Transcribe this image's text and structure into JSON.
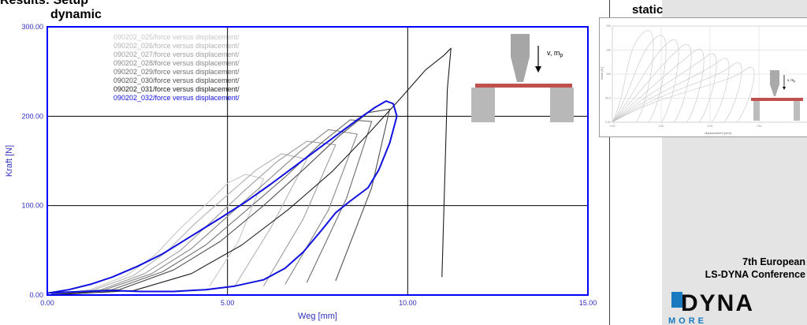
{
  "header": {
    "partial_title": "Results: Setup",
    "dynamic_label": "dynamic",
    "static_label": "static"
  },
  "conference": {
    "line1": "7th European",
    "line2": "LS-DYNA Conference"
  },
  "logo": {
    "name": "DYNA",
    "sub": "MORE",
    "accent": "#1a7abf"
  },
  "inset": {
    "label": "v, m",
    "subscript": "p"
  },
  "chart_data": {
    "type": "line",
    "xlabel": "Weg [mm]",
    "ylabel": "Kraft [N]",
    "xlim": [
      0,
      15
    ],
    "ylim": [
      0,
      300
    ],
    "xticks": [
      "0.00",
      "5.00",
      "10.00",
      "15.00"
    ],
    "yticks": [
      "0.00",
      "100.00",
      "200.00",
      "300.00"
    ],
    "grid": true,
    "legend_position": "top-left",
    "series": [
      {
        "name": "090202_025/force versus displacement/",
        "color": "#c8c8c8",
        "x": [
          0,
          1.2,
          2.2,
          3.0,
          3.7,
          4.5,
          5.0,
          5.5,
          6.0,
          5.3,
          4.5
        ],
        "y": [
          0,
          6,
          22,
          45,
          75,
          105,
          125,
          135,
          130,
          60,
          10
        ]
      },
      {
        "name": "090202_026/force versus displacement/",
        "color": "#b4b4b4",
        "x": [
          0,
          1.3,
          2.4,
          3.3,
          4.1,
          5.0,
          5.8,
          6.5,
          7.2,
          6.2,
          5.2
        ],
        "y": [
          0,
          6,
          22,
          48,
          80,
          112,
          140,
          158,
          152,
          75,
          10
        ]
      },
      {
        "name": "090202_027/force versus displacement/",
        "color": "#9e9e9e",
        "x": [
          0,
          1.5,
          2.7,
          3.7,
          4.6,
          5.5,
          6.4,
          7.2,
          8.0,
          7.1,
          6.0
        ],
        "y": [
          0,
          6,
          24,
          50,
          84,
          118,
          150,
          172,
          168,
          85,
          10
        ]
      },
      {
        "name": "090202_028/force versus displacement/",
        "color": "#888888",
        "x": [
          0,
          1.6,
          2.9,
          4.0,
          5.0,
          6.0,
          7.0,
          7.8,
          8.6,
          7.8,
          6.6
        ],
        "y": [
          0,
          6,
          24,
          52,
          88,
          124,
          160,
          185,
          180,
          95,
          12
        ]
      },
      {
        "name": "090202_029/force versus displacement/",
        "color": "#6e6e6e",
        "x": [
          0,
          1.8,
          3.2,
          4.4,
          5.5,
          6.6,
          7.6,
          8.4,
          9.0,
          8.3,
          7.2
        ],
        "y": [
          0,
          6,
          26,
          56,
          94,
          132,
          170,
          196,
          194,
          108,
          14
        ]
      },
      {
        "name": "090202_030/force versus displacement/",
        "color": "#505050",
        "x": [
          0,
          2.0,
          3.5,
          4.8,
          6.0,
          7.1,
          8.1,
          8.9,
          9.5,
          9.0,
          8.0
        ],
        "y": [
          0,
          6,
          28,
          60,
          100,
          140,
          178,
          204,
          208,
          120,
          16
        ]
      },
      {
        "name": "090202_031/force versus displacement/",
        "color": "#1e1e1e",
        "x": [
          0,
          2.4,
          4.0,
          5.4,
          6.7,
          7.9,
          8.9,
          9.8,
          10.5,
          11.0,
          11.2,
          11.1,
          10.95
        ],
        "y": [
          0,
          5,
          24,
          56,
          96,
          138,
          180,
          220,
          252,
          268,
          276,
          230,
          20
        ]
      },
      {
        "name": "090202_032/force versus displacement/",
        "color": "#1010e0",
        "x": [
          0,
          0.6,
          1.2,
          1.8,
          2.5,
          3.2,
          4.0,
          4.8,
          5.5,
          6.2,
          6.8,
          7.4,
          8.0,
          8.6,
          9.1,
          9.4,
          9.6,
          9.7,
          9.5,
          9.2,
          8.9,
          8.4,
          8.0,
          7.6,
          7.1,
          6.6,
          6.0,
          5.2,
          4.4,
          3.5,
          2.6,
          1.8,
          1.0,
          0.4,
          0.1
        ],
        "y": [
          2,
          6,
          12,
          20,
          32,
          46,
          66,
          86,
          104,
          124,
          142,
          160,
          178,
          196,
          210,
          217,
          214,
          200,
          170,
          140,
          120,
          105,
          92,
          72,
          48,
          30,
          17,
          10,
          6,
          4,
          4,
          5,
          4,
          3,
          2
        ]
      }
    ]
  },
  "static_chart": {
    "xlabel": "displacement [mm]",
    "ylabel": "force [N]",
    "xticks": [
      "0.00",
      "2.50",
      "5.00",
      "7.50"
    ],
    "yticks": [
      "0.00",
      "50.0",
      "100",
      "150",
      "200"
    ]
  }
}
